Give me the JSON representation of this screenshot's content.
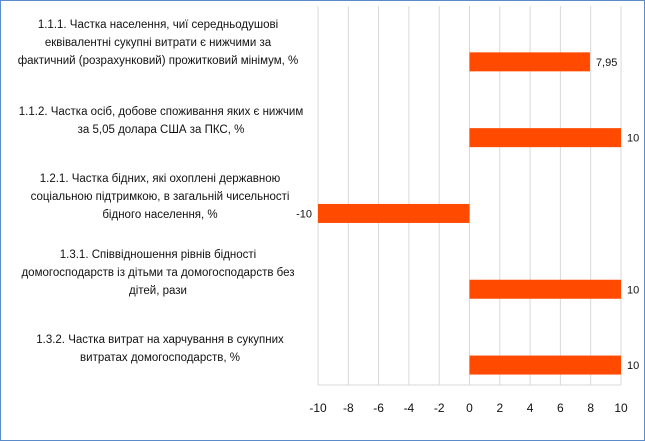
{
  "chart_data": {
    "type": "bar",
    "orientation": "horizontal",
    "title": "",
    "xlabel": "",
    "ylabel": "",
    "xlim": [
      -10,
      10
    ],
    "x_ticks": [
      -10,
      -8,
      -6,
      -4,
      -2,
      0,
      2,
      4,
      6,
      8,
      10
    ],
    "grid": true,
    "legend": "none",
    "bar_color": "#ff4a00",
    "categories": [
      "1.1.1. Частка населення, чиї середньодушові\nеквівалентні сукупні витрати є нижчими за\nфактичний  (розрахунковий) прожитковий мінімум, %",
      "1.1.2. Частка осіб, добове споживання яких є нижчим\nза 5,05 долара США за ПКС, %",
      "1.2.1. Частка бідних, які охоплені державною\nсоціальною підтримкою, в загальній чисельності\nбідного населення, %",
      "1.3.1. Співвідношення рівнів бідності\nдомогосподарств із дітьми та домогосподарств без\nдітей, рази",
      "1.3.2. Частка витрат  на харчування в сукупних\nвитратах  домогосподарств, %"
    ],
    "values": [
      7.95,
      10,
      -10,
      10,
      10
    ],
    "value_labels": [
      "7,95",
      "10",
      "-10",
      "10",
      "10"
    ]
  }
}
